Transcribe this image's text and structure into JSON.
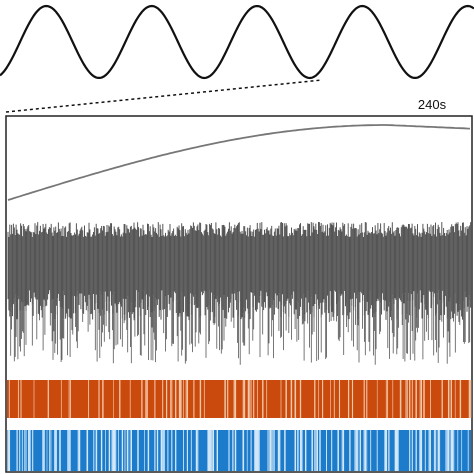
{
  "label": "240s"
}
